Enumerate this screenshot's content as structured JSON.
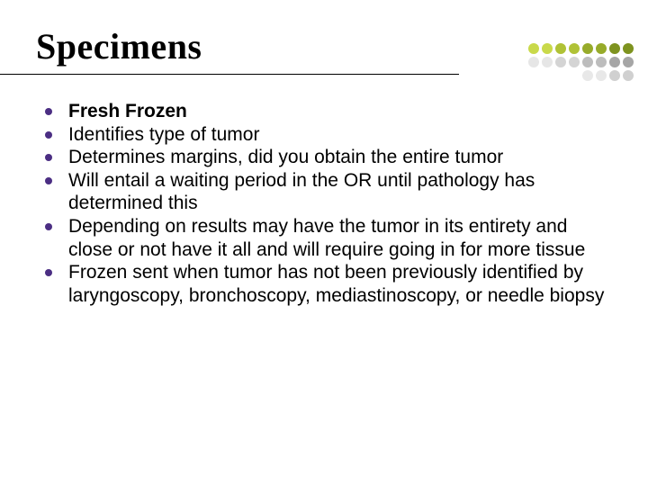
{
  "title": "Specimens",
  "title_color": "#000000",
  "title_fontsize": 40,
  "underline_color": "#000000",
  "bullet_color": "#4b2e83",
  "body_color": "#000000",
  "body_fontsize": 21,
  "items": [
    {
      "text": "Fresh Frozen",
      "bold": true
    },
    {
      "text": "Identifies type of tumor",
      "bold": false
    },
    {
      "text": "Determines margins, did you obtain the entire tumor",
      "bold": false
    },
    {
      "text": "Will entail a waiting period in the OR until pathology has determined this",
      "bold": false
    },
    {
      "text": "Depending on results may have the tumor in its entirety and close or not have it all and will require going in for more tissue",
      "bold": false
    },
    {
      "text": "Frozen sent when tumor has not been previously identified by laryngoscopy, bronchoscopy, mediastinoscopy, or needle biopsy",
      "bold": false
    }
  ],
  "dot_colors": [
    "#c9d94a",
    "#c9d94a",
    "#b0c236",
    "#b0c236",
    "#97ab2a",
    "#97ab2a",
    "#7e931f",
    "#7e931f",
    "#e6e6e6",
    "#e6e6e6",
    "#d4d4d4",
    "#d4d4d4",
    "#bdbdbd",
    "#bdbdbd",
    "#a6a6a6",
    "#a6a6a6",
    "#ffffff",
    "#ffffff",
    "#ffffff",
    "#ffffff",
    "#e8e8e8",
    "#e8e8e8",
    "#d0d0d0",
    "#d0d0d0"
  ],
  "background_color": "#ffffff"
}
